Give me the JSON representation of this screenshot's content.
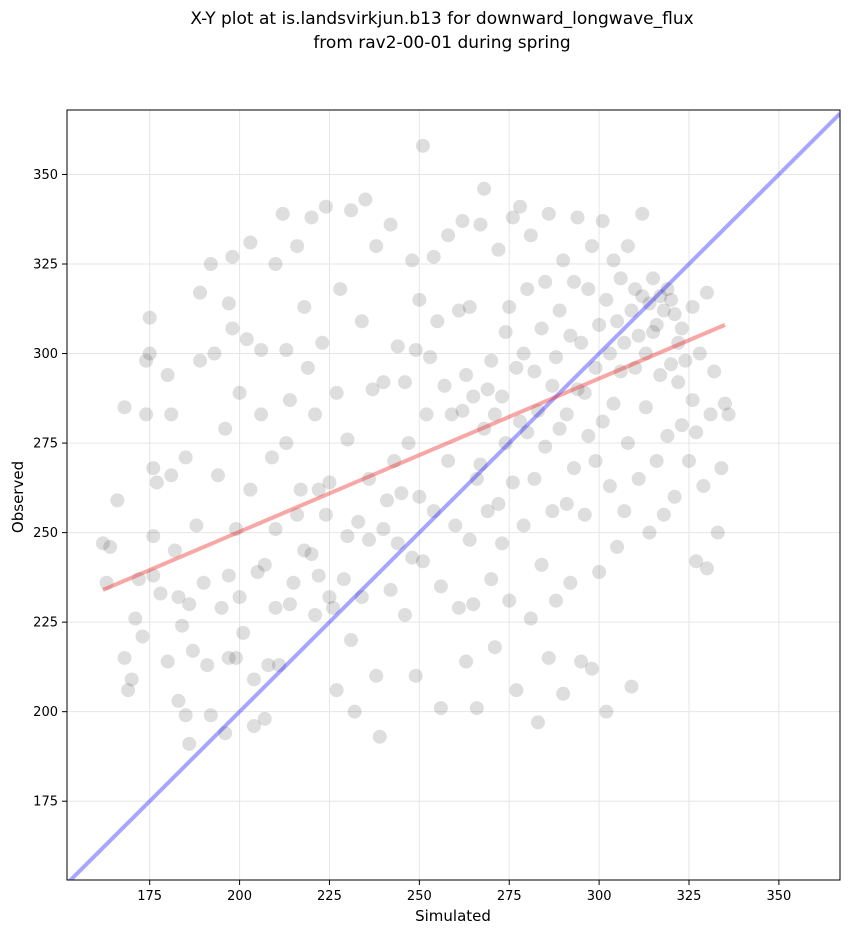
{
  "chart_data": {
    "type": "scatter",
    "title": "X-Y plot at is.landsvirkjun.b13 for downward_longwave_flux",
    "subtitle": "from rav2-00-01 during spring",
    "xlabel": "Simulated",
    "ylabel": "Observed",
    "xlim": [
      152,
      367
    ],
    "ylim": [
      153,
      368
    ],
    "xticks": [
      175,
      200,
      225,
      250,
      275,
      300,
      325,
      350
    ],
    "yticks": [
      175,
      200,
      225,
      250,
      275,
      300,
      325,
      350
    ],
    "grid": true,
    "legend": "none",
    "colors": {
      "points": "#000000",
      "identity_line": "#0000ff",
      "fit_line": "#ee2222"
    },
    "identity_line": {
      "x": [
        152,
        367
      ],
      "y": [
        152,
        367
      ]
    },
    "fit_line": {
      "x": [
        162,
        335
      ],
      "y": [
        234,
        308
      ]
    },
    "series": [
      {
        "values": [
          [
            162,
            247
          ],
          [
            163,
            236
          ],
          [
            164,
            246
          ],
          [
            166,
            259
          ],
          [
            168,
            215
          ],
          [
            168,
            285
          ],
          [
            169,
            206
          ],
          [
            170,
            209
          ],
          [
            171,
            226
          ],
          [
            172,
            237
          ],
          [
            173,
            221
          ],
          [
            174,
            283
          ],
          [
            174,
            298
          ],
          [
            175,
            310
          ],
          [
            175,
            300
          ],
          [
            176,
            268
          ],
          [
            176,
            249
          ],
          [
            176,
            238
          ],
          [
            177,
            264
          ],
          [
            178,
            233
          ],
          [
            180,
            214
          ],
          [
            180,
            294
          ],
          [
            181,
            283
          ],
          [
            181,
            266
          ],
          [
            182,
            245
          ],
          [
            183,
            232
          ],
          [
            183,
            203
          ],
          [
            184,
            224
          ],
          [
            185,
            271
          ],
          [
            185,
            199
          ],
          [
            186,
            191
          ],
          [
            186,
            230
          ],
          [
            187,
            217
          ],
          [
            188,
            252
          ],
          [
            189,
            317
          ],
          [
            189,
            298
          ],
          [
            190,
            236
          ],
          [
            191,
            213
          ],
          [
            192,
            199
          ],
          [
            192,
            325
          ],
          [
            193,
            300
          ],
          [
            194,
            266
          ],
          [
            195,
            229
          ],
          [
            196,
            194
          ],
          [
            196,
            279
          ],
          [
            197,
            314
          ],
          [
            197,
            215
          ],
          [
            197,
            238
          ],
          [
            198,
            307
          ],
          [
            198,
            327
          ],
          [
            199,
            251
          ],
          [
            199,
            215
          ],
          [
            200,
            289
          ],
          [
            200,
            232
          ],
          [
            201,
            222
          ],
          [
            202,
            304
          ],
          [
            203,
            331
          ],
          [
            203,
            262
          ],
          [
            204,
            209
          ],
          [
            204,
            196
          ],
          [
            205,
            239
          ],
          [
            206,
            283
          ],
          [
            206,
            301
          ],
          [
            207,
            241
          ],
          [
            207,
            198
          ],
          [
            208,
            213
          ],
          [
            209,
            271
          ],
          [
            210,
            325
          ],
          [
            210,
            251
          ],
          [
            210,
            229
          ],
          [
            211,
            213
          ],
          [
            212,
            339
          ],
          [
            213,
            301
          ],
          [
            213,
            275
          ],
          [
            214,
            287
          ],
          [
            214,
            230
          ],
          [
            215,
            236
          ],
          [
            216,
            255
          ],
          [
            216,
            330
          ],
          [
            217,
            262
          ],
          [
            218,
            313
          ],
          [
            218,
            245
          ],
          [
            219,
            296
          ],
          [
            220,
            244
          ],
          [
            220,
            338
          ],
          [
            221,
            283
          ],
          [
            221,
            227
          ],
          [
            222,
            262
          ],
          [
            222,
            238
          ],
          [
            223,
            303
          ],
          [
            224,
            341
          ],
          [
            224,
            255
          ],
          [
            225,
            264
          ],
          [
            225,
            232
          ],
          [
            226,
            229
          ],
          [
            227,
            206
          ],
          [
            227,
            289
          ],
          [
            228,
            318
          ],
          [
            229,
            237
          ],
          [
            230,
            249
          ],
          [
            230,
            276
          ],
          [
            231,
            340
          ],
          [
            231,
            220
          ],
          [
            232,
            200
          ],
          [
            233,
            253
          ],
          [
            234,
            309
          ],
          [
            234,
            232
          ],
          [
            235,
            343
          ],
          [
            236,
            265
          ],
          [
            236,
            248
          ],
          [
            237,
            290
          ],
          [
            238,
            330
          ],
          [
            238,
            210
          ],
          [
            239,
            193
          ],
          [
            240,
            292
          ],
          [
            240,
            251
          ],
          [
            241,
            259
          ],
          [
            242,
            336
          ],
          [
            242,
            234
          ],
          [
            243,
            270
          ],
          [
            244,
            302
          ],
          [
            244,
            247
          ],
          [
            245,
            261
          ],
          [
            246,
            292
          ],
          [
            246,
            227
          ],
          [
            247,
            275
          ],
          [
            248,
            326
          ],
          [
            248,
            243
          ],
          [
            249,
            301
          ],
          [
            249,
            210
          ],
          [
            250,
            315
          ],
          [
            250,
            260
          ],
          [
            251,
            358
          ],
          [
            251,
            242
          ],
          [
            252,
            283
          ],
          [
            253,
            299
          ],
          [
            254,
            327
          ],
          [
            254,
            256
          ],
          [
            255,
            309
          ],
          [
            256,
            235
          ],
          [
            256,
            201
          ],
          [
            257,
            291
          ],
          [
            258,
            333
          ],
          [
            258,
            270
          ],
          [
            259,
            283
          ],
          [
            260,
            252
          ],
          [
            261,
            312
          ],
          [
            261,
            229
          ],
          [
            262,
            337
          ],
          [
            262,
            284
          ],
          [
            263,
            294
          ],
          [
            263,
            214
          ],
          [
            264,
            313
          ],
          [
            264,
            248
          ],
          [
            265,
            288
          ],
          [
            265,
            230
          ],
          [
            266,
            265
          ],
          [
            266,
            201
          ],
          [
            267,
            269
          ],
          [
            267,
            336
          ],
          [
            268,
            279
          ],
          [
            268,
            346
          ],
          [
            269,
            290
          ],
          [
            269,
            256
          ],
          [
            270,
            298
          ],
          [
            270,
            237
          ],
          [
            271,
            283
          ],
          [
            271,
            218
          ],
          [
            272,
            258
          ],
          [
            272,
            329
          ],
          [
            273,
            288
          ],
          [
            273,
            247
          ],
          [
            274,
            275
          ],
          [
            274,
            306
          ],
          [
            275,
            313
          ],
          [
            275,
            231
          ],
          [
            276,
            338
          ],
          [
            276,
            264
          ],
          [
            277,
            296
          ],
          [
            277,
            206
          ],
          [
            278,
            281
          ],
          [
            278,
            341
          ],
          [
            279,
            300
          ],
          [
            279,
            252
          ],
          [
            280,
            318
          ],
          [
            280,
            278
          ],
          [
            281,
            226
          ],
          [
            281,
            333
          ],
          [
            282,
            295
          ],
          [
            282,
            265
          ],
          [
            283,
            284
          ],
          [
            283,
            197
          ],
          [
            284,
            307
          ],
          [
            284,
            241
          ],
          [
            285,
            320
          ],
          [
            285,
            274
          ],
          [
            286,
            339
          ],
          [
            286,
            215
          ],
          [
            287,
            291
          ],
          [
            287,
            256
          ],
          [
            288,
            299
          ],
          [
            288,
            231
          ],
          [
            289,
            312
          ],
          [
            289,
            279
          ],
          [
            290,
            326
          ],
          [
            290,
            205
          ],
          [
            291,
            283
          ],
          [
            291,
            258
          ],
          [
            292,
            305
          ],
          [
            292,
            236
          ],
          [
            293,
            320
          ],
          [
            293,
            268
          ],
          [
            294,
            338
          ],
          [
            294,
            290
          ],
          [
            295,
            303
          ],
          [
            295,
            214
          ],
          [
            296,
            289
          ],
          [
            296,
            255
          ],
          [
            297,
            318
          ],
          [
            297,
            277
          ],
          [
            298,
            330
          ],
          [
            298,
            212
          ],
          [
            299,
            296
          ],
          [
            299,
            270
          ],
          [
            300,
            308
          ],
          [
            300,
            239
          ],
          [
            301,
            337
          ],
          [
            301,
            281
          ],
          [
            302,
            315
          ],
          [
            302,
            200
          ],
          [
            303,
            300
          ],
          [
            303,
            263
          ],
          [
            304,
            326
          ],
          [
            304,
            286
          ],
          [
            305,
            309
          ],
          [
            305,
            246
          ],
          [
            306,
            321
          ],
          [
            306,
            295
          ],
          [
            307,
            303
          ],
          [
            307,
            256
          ],
          [
            308,
            330
          ],
          [
            308,
            275
          ],
          [
            309,
            312
          ],
          [
            309,
            207
          ],
          [
            310,
            318
          ],
          [
            310,
            296
          ],
          [
            311,
            305
          ],
          [
            311,
            265
          ],
          [
            312,
            316
          ],
          [
            312,
            339
          ],
          [
            313,
            300
          ],
          [
            313,
            285
          ],
          [
            314,
            314
          ],
          [
            314,
            250
          ],
          [
            315,
            321
          ],
          [
            315,
            306
          ],
          [
            316,
            308
          ],
          [
            316,
            270
          ],
          [
            317,
            316
          ],
          [
            317,
            294
          ],
          [
            318,
            312
          ],
          [
            318,
            255
          ],
          [
            319,
            318
          ],
          [
            319,
            277
          ],
          [
            320,
            315
          ],
          [
            320,
            297
          ],
          [
            321,
            311
          ],
          [
            321,
            260
          ],
          [
            322,
            303
          ],
          [
            322,
            292
          ],
          [
            323,
            307
          ],
          [
            323,
            280
          ],
          [
            324,
            298
          ],
          [
            325,
            270
          ],
          [
            326,
            287
          ],
          [
            326,
            313
          ],
          [
            327,
            278
          ],
          [
            327,
            242
          ],
          [
            328,
            300
          ],
          [
            329,
            263
          ],
          [
            330,
            317
          ],
          [
            330,
            240
          ],
          [
            331,
            283
          ],
          [
            332,
            295
          ],
          [
            333,
            250
          ],
          [
            334,
            268
          ],
          [
            335,
            286
          ],
          [
            336,
            283
          ]
        ]
      }
    ]
  }
}
